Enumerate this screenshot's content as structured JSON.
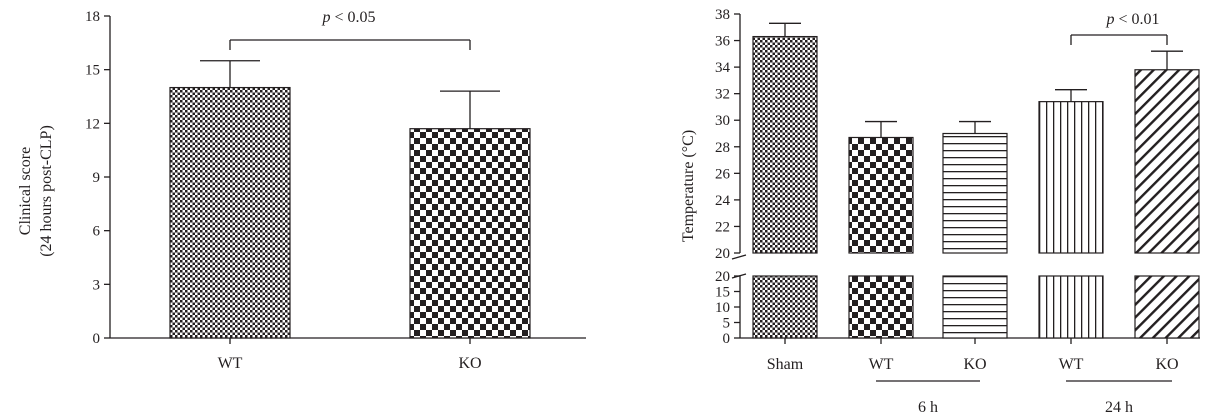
{
  "chart_data": [
    {
      "type": "bar",
      "ylabel_line1": "Clinical score",
      "ylabel_line2": "(24 hours post-CLP)",
      "xlabel": "",
      "ylim": [
        0,
        18
      ],
      "yticks": [
        "0",
        "3",
        "6",
        "9",
        "12",
        "15",
        "18"
      ],
      "categories": [
        "WT",
        "KO"
      ],
      "values": [
        14.0,
        11.7
      ],
      "errors": [
        1.5,
        2.1
      ],
      "annotation": {
        "symbol": "p",
        "text": " < 0.05",
        "between": [
          "WT",
          "KO"
        ]
      },
      "grid": false,
      "legend": "none"
    },
    {
      "type": "bar",
      "ylabel": "Temperature (°C)",
      "xlabel": "",
      "broken_axis": true,
      "ylim_upper": [
        20,
        38
      ],
      "ylim_lower": [
        0,
        20
      ],
      "yticks_upper": [
        "20",
        "22",
        "24",
        "26",
        "28",
        "30",
        "32",
        "34",
        "36",
        "38"
      ],
      "yticks_lower": [
        "0",
        "5",
        "10",
        "15",
        "20"
      ],
      "categories": [
        "Sham",
        "WT",
        "KO",
        "WT",
        "KO"
      ],
      "values": [
        36.3,
        28.7,
        29.0,
        31.4,
        33.8
      ],
      "errors": [
        1.0,
        1.2,
        0.9,
        0.9,
        1.4
      ],
      "groups": [
        {
          "label": "6 h",
          "members": [
            "WT",
            "KO"
          ]
        },
        {
          "label": "24 h",
          "members": [
            "WT",
            "KO"
          ]
        }
      ],
      "annotation": {
        "symbol": "p",
        "text": " < 0.01",
        "between": [
          "WT (24 h)",
          "KO (24 h)"
        ]
      },
      "grid": false,
      "legend": "none"
    }
  ]
}
